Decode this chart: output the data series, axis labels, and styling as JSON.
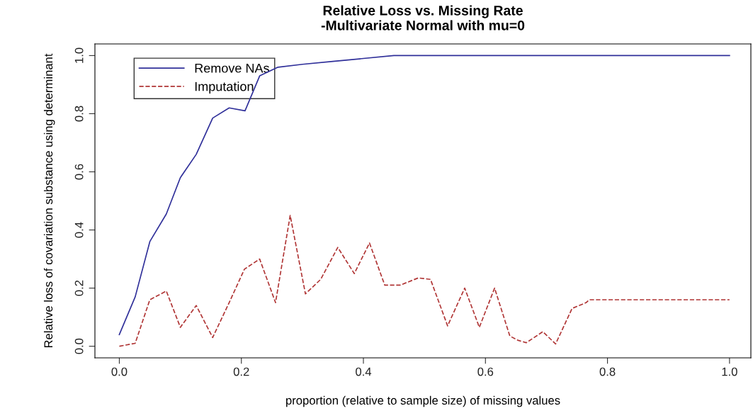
{
  "chart_data": {
    "type": "line",
    "title": "Relative Loss vs. Missing Rate\n-Multivariate Normal with mu=0",
    "xlabel": "proportion (relative to sample size) of missing values",
    "ylabel": "Relative loss of covariation substance using determinant",
    "xlim": [
      -0.04,
      1.035
    ],
    "ylim": [
      -0.04,
      1.04
    ],
    "xticks": [
      {
        "value": 0,
        "label": "0.0"
      },
      {
        "value": 0.2,
        "label": "0.2"
      },
      {
        "value": 0.4,
        "label": "0.4"
      },
      {
        "value": 0.6,
        "label": "0.6"
      },
      {
        "value": 0.8,
        "label": "0.8"
      },
      {
        "value": 1,
        "label": "1.0"
      }
    ],
    "yticks": [
      {
        "value": 0,
        "label": "0.0"
      },
      {
        "value": 0.2,
        "label": "0.2"
      },
      {
        "value": 0.4,
        "label": "0.4"
      },
      {
        "value": 0.6,
        "label": "0.6"
      },
      {
        "value": 0.8,
        "label": "0.8"
      },
      {
        "value": 1,
        "label": "1.0"
      }
    ],
    "grid": false,
    "legend": "top left",
    "marker": "none",
    "series": [
      {
        "name": "Remove NAs",
        "color": "#30309a",
        "line_style": "solid",
        "x": [
          0,
          0.026,
          0.05,
          0.077,
          0.1,
          0.126,
          0.153,
          0.18,
          0.206,
          0.23,
          0.26,
          0.3,
          0.35,
          0.4,
          0.45,
          0.5,
          1.0
        ],
        "values": [
          0.04,
          0.17,
          0.36,
          0.455,
          0.58,
          0.66,
          0.785,
          0.82,
          0.81,
          0.93,
          0.96,
          0.97,
          0.98,
          0.99,
          1.0,
          1.0,
          1.0
        ]
      },
      {
        "name": "Imputation",
        "color": "#b03535",
        "line_style": "dashed",
        "x": [
          0,
          0.026,
          0.05,
          0.077,
          0.1,
          0.126,
          0.153,
          0.18,
          0.205,
          0.23,
          0.256,
          0.28,
          0.305,
          0.33,
          0.358,
          0.385,
          0.41,
          0.435,
          0.46,
          0.49,
          0.51,
          0.538,
          0.566,
          0.59,
          0.615,
          0.64,
          0.654,
          0.667,
          0.694,
          0.715,
          0.742,
          0.765,
          0.77,
          1.0
        ],
        "values": [
          0.0,
          0.01,
          0.16,
          0.19,
          0.065,
          0.14,
          0.03,
          0.15,
          0.265,
          0.3,
          0.15,
          0.45,
          0.18,
          0.23,
          0.34,
          0.25,
          0.355,
          0.21,
          0.21,
          0.235,
          0.23,
          0.07,
          0.2,
          0.065,
          0.2,
          0.035,
          0.02,
          0.012,
          0.05,
          0.008,
          0.13,
          0.15,
          0.16,
          0.16
        ]
      }
    ]
  }
}
